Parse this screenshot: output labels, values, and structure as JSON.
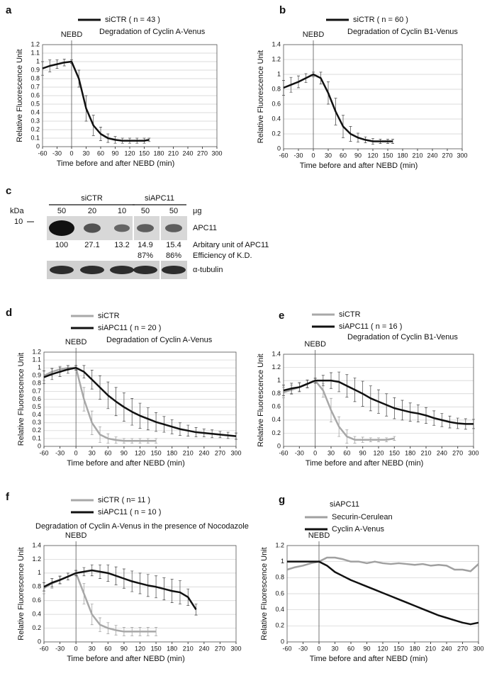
{
  "chart_data": [
    {
      "type": "line",
      "panel": "a",
      "title": "Degradation of Cyclin A-Venus",
      "annotation": "NEBD",
      "xlabel": "Time before and after NEBD (min)",
      "ylabel": "Relative Fluorescence Unit",
      "xlim": [
        -60,
        300
      ],
      "xticks": [
        -60,
        -30,
        0,
        30,
        60,
        90,
        120,
        150,
        180,
        210,
        240,
        270,
        300
      ],
      "ylim": [
        0,
        1.2
      ],
      "yticks": [
        0,
        0.1,
        0.2,
        0.3,
        0.4,
        0.5,
        0.6,
        0.7,
        0.8,
        0.9,
        1,
        1.1,
        1.2
      ],
      "grid": true,
      "series": [
        {
          "name": "siCTR ( n = 43 )",
          "color": "#111111",
          "x": [
            -60,
            -45,
            -30,
            -15,
            0,
            15,
            30,
            45,
            60,
            75,
            90,
            105,
            120,
            135,
            150,
            160
          ],
          "values": [
            0.92,
            0.95,
            0.97,
            0.99,
            1.0,
            0.8,
            0.45,
            0.25,
            0.15,
            0.1,
            0.08,
            0.07,
            0.07,
            0.07,
            0.07,
            0.08
          ],
          "errors": [
            0.08,
            0.07,
            0.05,
            0.04,
            0.02,
            0.1,
            0.15,
            0.12,
            0.08,
            0.05,
            0.04,
            0.03,
            0.03,
            0.03,
            0.03,
            0.02
          ]
        }
      ]
    },
    {
      "type": "line",
      "panel": "b",
      "title": "Degradation of Cyclin B1-Venus",
      "annotation": "NEBD",
      "xlabel": "Time before and after NEBD (min)",
      "ylabel": "Relative Fluorescence Unit",
      "xlim": [
        -60,
        300
      ],
      "xticks": [
        -60,
        -30,
        0,
        30,
        60,
        90,
        120,
        150,
        180,
        210,
        240,
        270,
        300
      ],
      "ylim": [
        0,
        1.4
      ],
      "yticks": [
        0,
        0.2,
        0.4,
        0.6,
        0.8,
        1,
        1.2,
        1.4
      ],
      "grid": true,
      "series": [
        {
          "name": "siCTR ( n = 60 )",
          "color": "#111111",
          "x": [
            -60,
            -45,
            -30,
            -15,
            0,
            15,
            30,
            45,
            60,
            75,
            90,
            105,
            120,
            135,
            150,
            160
          ],
          "values": [
            0.82,
            0.86,
            0.9,
            0.95,
            1.0,
            0.95,
            0.75,
            0.5,
            0.3,
            0.2,
            0.15,
            0.12,
            0.1,
            0.1,
            0.1,
            0.1
          ],
          "errors": [
            0.1,
            0.1,
            0.08,
            0.06,
            0.03,
            0.08,
            0.15,
            0.18,
            0.15,
            0.1,
            0.06,
            0.04,
            0.04,
            0.03,
            0.03,
            0.03
          ]
        }
      ]
    },
    {
      "type": "line",
      "panel": "d",
      "title": "Degradation of Cyclin A-Venus",
      "annotation": "NEBD",
      "xlabel": "Time before and after NEBD (min)",
      "ylabel": "Relative Fluorescence Unit",
      "xlim": [
        -60,
        300
      ],
      "xticks": [
        -60,
        -30,
        0,
        30,
        60,
        90,
        120,
        150,
        180,
        210,
        240,
        270,
        300
      ],
      "ylim": [
        0,
        1.2
      ],
      "yticks": [
        0,
        0.1,
        0.2,
        0.3,
        0.4,
        0.5,
        0.6,
        0.7,
        0.8,
        0.9,
        1,
        1.1,
        1.2
      ],
      "grid": true,
      "series": [
        {
          "name": "siCTR",
          "color": "#a8a8a8",
          "x": [
            -60,
            -45,
            -30,
            -15,
            0,
            15,
            30,
            45,
            60,
            75,
            90,
            105,
            120,
            135,
            150
          ],
          "values": [
            0.9,
            0.95,
            0.98,
            1.0,
            1.0,
            0.6,
            0.3,
            0.15,
            0.1,
            0.08,
            0.07,
            0.07,
            0.07,
            0.07,
            0.07
          ],
          "errors": [
            0.06,
            0.05,
            0.04,
            0.03,
            0.02,
            0.15,
            0.15,
            0.1,
            0.06,
            0.04,
            0.03,
            0.03,
            0.03,
            0.03,
            0.03
          ]
        },
        {
          "name": "siAPC11 ( n = 20 )",
          "color": "#111111",
          "x": [
            -60,
            -45,
            -30,
            -15,
            0,
            15,
            30,
            45,
            60,
            75,
            90,
            105,
            120,
            135,
            150,
            165,
            180,
            195,
            210,
            225,
            240,
            255,
            270,
            285,
            300
          ],
          "values": [
            0.88,
            0.92,
            0.95,
            0.98,
            1.0,
            0.95,
            0.85,
            0.75,
            0.65,
            0.57,
            0.5,
            0.44,
            0.39,
            0.35,
            0.31,
            0.28,
            0.25,
            0.22,
            0.2,
            0.18,
            0.17,
            0.16,
            0.15,
            0.14,
            0.13
          ],
          "errors": [
            0.08,
            0.07,
            0.06,
            0.05,
            0.03,
            0.08,
            0.12,
            0.15,
            0.17,
            0.18,
            0.18,
            0.17,
            0.16,
            0.14,
            0.12,
            0.1,
            0.09,
            0.08,
            0.07,
            0.06,
            0.05,
            0.05,
            0.04,
            0.04,
            0.04
          ]
        }
      ]
    },
    {
      "type": "line",
      "panel": "e",
      "title": "Degradation of Cyclin B1-Venus",
      "annotation": "NEBD",
      "xlabel": "Time before and after NEBD (min)",
      "ylabel": "Relative Fluorescence Unit",
      "xlim": [
        -60,
        300
      ],
      "xticks": [
        -60,
        -30,
        0,
        30,
        60,
        90,
        120,
        150,
        180,
        210,
        240,
        270,
        300
      ],
      "ylim": [
        0,
        1.4
      ],
      "yticks": [
        0,
        0.2,
        0.4,
        0.6,
        0.8,
        1,
        1.2,
        1.4
      ],
      "grid": true,
      "series": [
        {
          "name": "siCTR",
          "color": "#a8a8a8",
          "x": [
            -60,
            -45,
            -30,
            -15,
            0,
            15,
            30,
            45,
            60,
            75,
            90,
            105,
            120,
            135,
            150
          ],
          "values": [
            0.82,
            0.86,
            0.9,
            0.95,
            1.0,
            0.85,
            0.55,
            0.3,
            0.15,
            0.1,
            0.1,
            0.1,
            0.1,
            0.1,
            0.12
          ],
          "errors": [
            0.08,
            0.07,
            0.06,
            0.05,
            0.03,
            0.1,
            0.18,
            0.15,
            0.1,
            0.05,
            0.04,
            0.03,
            0.03,
            0.03,
            0.03
          ]
        },
        {
          "name": "siAPC11 ( n = 16 )",
          "color": "#111111",
          "x": [
            -60,
            -45,
            -30,
            -15,
            0,
            15,
            30,
            45,
            60,
            75,
            90,
            105,
            120,
            135,
            150,
            165,
            180,
            195,
            210,
            225,
            240,
            255,
            270,
            285,
            300
          ],
          "values": [
            0.85,
            0.88,
            0.9,
            0.95,
            1.0,
            1.0,
            1.0,
            0.98,
            0.92,
            0.86,
            0.8,
            0.73,
            0.68,
            0.63,
            0.58,
            0.55,
            0.52,
            0.5,
            0.47,
            0.43,
            0.4,
            0.37,
            0.35,
            0.34,
            0.34
          ],
          "errors": [
            0.08,
            0.08,
            0.07,
            0.06,
            0.04,
            0.08,
            0.12,
            0.15,
            0.17,
            0.18,
            0.19,
            0.19,
            0.18,
            0.17,
            0.16,
            0.15,
            0.14,
            0.13,
            0.12,
            0.11,
            0.1,
            0.09,
            0.08,
            0.08,
            0.07
          ]
        }
      ]
    },
    {
      "type": "line",
      "panel": "f",
      "title": "Degradation of Cyclin A-Venus in the presence of Nocodazole",
      "annotation": "NEBD",
      "xlabel": "Time before and after NEBD (min)",
      "ylabel": "Relative Fluorescence Unit",
      "xlim": [
        -60,
        300
      ],
      "xticks": [
        -60,
        -30,
        0,
        30,
        60,
        90,
        120,
        150,
        180,
        210,
        240,
        270,
        300
      ],
      "ylim": [
        0,
        1.4
      ],
      "yticks": [
        0,
        0.2,
        0.4,
        0.6,
        0.8,
        1,
        1.2,
        1.4
      ],
      "grid": true,
      "series": [
        {
          "name": "siCTR ( n= 11 )",
          "color": "#a8a8a8",
          "x": [
            -60,
            -45,
            -30,
            -15,
            0,
            15,
            30,
            45,
            60,
            75,
            90,
            105,
            120,
            135,
            150
          ],
          "values": [
            0.78,
            0.85,
            0.9,
            0.95,
            1.0,
            0.7,
            0.4,
            0.25,
            0.2,
            0.17,
            0.15,
            0.15,
            0.15,
            0.15,
            0.15
          ],
          "errors": [
            0.08,
            0.07,
            0.06,
            0.05,
            0.03,
            0.15,
            0.15,
            0.1,
            0.08,
            0.07,
            0.06,
            0.06,
            0.06,
            0.06,
            0.06
          ]
        },
        {
          "name": "siAPC11 ( n = 10 )",
          "color": "#111111",
          "x": [
            -60,
            -45,
            -30,
            -15,
            0,
            15,
            30,
            45,
            60,
            75,
            90,
            105,
            120,
            135,
            150,
            165,
            180,
            195,
            210,
            225
          ],
          "values": [
            0.8,
            0.86,
            0.9,
            0.95,
            1.0,
            1.02,
            1.04,
            1.02,
            1.0,
            0.96,
            0.92,
            0.88,
            0.85,
            0.82,
            0.8,
            0.77,
            0.74,
            0.72,
            0.65,
            0.47
          ],
          "errors": [
            0.06,
            0.06,
            0.05,
            0.05,
            0.04,
            0.06,
            0.08,
            0.1,
            0.12,
            0.13,
            0.14,
            0.15,
            0.15,
            0.16,
            0.16,
            0.16,
            0.17,
            0.17,
            0.12,
            0.08
          ]
        }
      ]
    },
    {
      "type": "line",
      "panel": "g",
      "legend_title": "siAPC11",
      "annotation": "NEBD",
      "xlabel": "Time before and after NEBD (min)",
      "ylabel": "Relative Fluorescence Unit",
      "xlim": [
        -60,
        300
      ],
      "xticks": [
        -60,
        -30,
        0,
        30,
        60,
        90,
        120,
        150,
        180,
        210,
        240,
        270,
        300
      ],
      "ylim": [
        0,
        1.2
      ],
      "yticks": [
        0,
        0.2,
        0.4,
        0.6,
        0.8,
        1,
        1.2
      ],
      "grid": true,
      "series": [
        {
          "name": "Securin-Cerulean",
          "color": "#a0a0a0",
          "x": [
            -60,
            -45,
            -30,
            -15,
            0,
            15,
            30,
            45,
            60,
            75,
            90,
            105,
            120,
            135,
            150,
            165,
            180,
            195,
            210,
            225,
            240,
            255,
            270,
            285,
            300
          ],
          "values": [
            0.9,
            0.93,
            0.95,
            0.98,
            1.0,
            1.05,
            1.05,
            1.03,
            1.0,
            1.0,
            0.98,
            1.0,
            0.98,
            0.97,
            0.98,
            0.97,
            0.96,
            0.97,
            0.95,
            0.96,
            0.95,
            0.9,
            0.9,
            0.88,
            0.97
          ]
        },
        {
          "name": "Cyclin A-Venus",
          "color": "#111111",
          "x": [
            -60,
            -45,
            -30,
            -15,
            0,
            15,
            30,
            45,
            60,
            75,
            90,
            105,
            120,
            135,
            150,
            165,
            180,
            195,
            210,
            225,
            240,
            255,
            270,
            285,
            300
          ],
          "values": [
            1.0,
            1.0,
            1.0,
            1.0,
            1.0,
            0.95,
            0.87,
            0.82,
            0.77,
            0.73,
            0.69,
            0.65,
            0.61,
            0.57,
            0.53,
            0.49,
            0.45,
            0.41,
            0.37,
            0.33,
            0.3,
            0.27,
            0.24,
            0.22,
            0.24
          ]
        }
      ]
    }
  ],
  "blot": {
    "panel": "c",
    "unit": "kDa",
    "marker": "10",
    "groups": [
      {
        "name": "siCTR",
        "lanes": 3
      },
      {
        "name": "siAPC11",
        "lanes": 2
      }
    ],
    "amounts": [
      "50",
      "20",
      "10",
      "50",
      "50"
    ],
    "amount_unit": "μg",
    "band_label": "APC11",
    "loading_label": "α-tubulin",
    "quant": {
      "label": "Arbitary unit of APC11",
      "values": [
        "100",
        "27.1",
        "13.2",
        "14.9",
        "15.4"
      ]
    },
    "efficiency": {
      "label": "Efficiency of K.D.",
      "values": [
        "87%",
        "86%"
      ]
    }
  }
}
